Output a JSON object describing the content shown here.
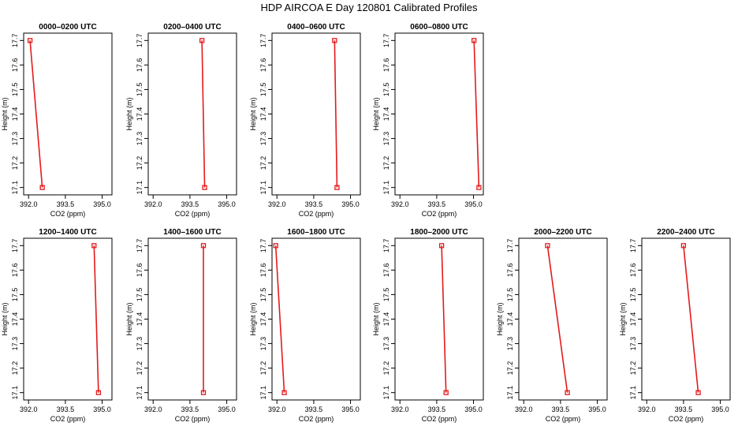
{
  "title": "HDP AIRCOA E  Day 120801  Calibrated Profiles",
  "colors": {
    "series": "#e41a1c",
    "axis": "#000000"
  },
  "chart_data": [
    {
      "type": "line",
      "title": "0000–0200 UTC",
      "xlabel": "CO2 (ppm)",
      "ylabel": "Height (m)",
      "xlim": [
        391.8,
        395.4
      ],
      "ylim": [
        17.07,
        17.73
      ],
      "xticks": [
        "392.0",
        "393.5",
        "395.0"
      ],
      "yticks": [
        "17.1",
        "17.2",
        "17.3",
        "17.4",
        "17.5",
        "17.6",
        "17.7"
      ],
      "x": [
        392.06,
        392.56
      ],
      "y": [
        17.7,
        17.1
      ]
    },
    {
      "type": "line",
      "title": "0200–0400 UTC",
      "xlabel": "CO2 (ppm)",
      "ylabel": "Height (m)",
      "xlim": [
        391.8,
        395.4
      ],
      "ylim": [
        17.07,
        17.73
      ],
      "xticks": [
        "392.0",
        "393.5",
        "395.0"
      ],
      "yticks": [
        "17.1",
        "17.2",
        "17.3",
        "17.4",
        "17.5",
        "17.6",
        "17.7"
      ],
      "x": [
        393.99,
        394.1
      ],
      "y": [
        17.7,
        17.1
      ]
    },
    {
      "type": "line",
      "title": "0400–0600 UTC",
      "xlabel": "CO2 (ppm)",
      "ylabel": "Height (m)",
      "xlim": [
        391.8,
        395.4
      ],
      "ylim": [
        17.07,
        17.73
      ],
      "xticks": [
        "392.0",
        "393.5",
        "395.0"
      ],
      "yticks": [
        "17.1",
        "17.2",
        "17.3",
        "17.4",
        "17.5",
        "17.6",
        "17.7"
      ],
      "x": [
        394.35,
        394.45
      ],
      "y": [
        17.7,
        17.1
      ]
    },
    {
      "type": "line",
      "title": "0600–0800 UTC",
      "xlabel": "CO2 (ppm)",
      "ylabel": "Height (m)",
      "xlim": [
        391.8,
        395.4
      ],
      "ylim": [
        17.07,
        17.73
      ],
      "xticks": [
        "392.0",
        "393.5",
        "395.0"
      ],
      "yticks": [
        "17.1",
        "17.2",
        "17.3",
        "17.4",
        "17.5",
        "17.6",
        "17.7"
      ],
      "x": [
        395.02,
        395.22
      ],
      "y": [
        17.7,
        17.1
      ]
    },
    {
      "type": "line",
      "title": "1200–1400 UTC",
      "xlabel": "CO2 (ppm)",
      "ylabel": "Height (m)",
      "xlim": [
        391.8,
        395.4
      ],
      "ylim": [
        17.07,
        17.73
      ],
      "xticks": [
        "392.0",
        "393.5",
        "395.0"
      ],
      "yticks": [
        "17.1",
        "17.2",
        "17.3",
        "17.4",
        "17.5",
        "17.6",
        "17.7"
      ],
      "x": [
        394.67,
        394.85
      ],
      "y": [
        17.7,
        17.1
      ]
    },
    {
      "type": "line",
      "title": "1400–1600 UTC",
      "xlabel": "CO2 (ppm)",
      "ylabel": "Height (m)",
      "xlim": [
        391.8,
        395.4
      ],
      "ylim": [
        17.07,
        17.73
      ],
      "xticks": [
        "392.0",
        "393.5",
        "395.0"
      ],
      "yticks": [
        "17.1",
        "17.2",
        "17.3",
        "17.4",
        "17.5",
        "17.6",
        "17.7"
      ],
      "x": [
        394.05,
        394.05
      ],
      "y": [
        17.7,
        17.1
      ]
    },
    {
      "type": "line",
      "title": "1600–1800 UTC",
      "xlabel": "CO2 (ppm)",
      "ylabel": "Height (m)",
      "xlim": [
        391.8,
        395.4
      ],
      "ylim": [
        17.07,
        17.73
      ],
      "xticks": [
        "392.0",
        "393.5",
        "395.0"
      ],
      "yticks": [
        "17.1",
        "17.2",
        "17.3",
        "17.4",
        "17.5",
        "17.6",
        "17.7"
      ],
      "x": [
        391.95,
        392.3
      ],
      "y": [
        17.7,
        17.1
      ]
    },
    {
      "type": "line",
      "title": "1800–2000 UTC",
      "xlabel": "CO2 (ppm)",
      "ylabel": "Height (m)",
      "xlim": [
        391.8,
        395.4
      ],
      "ylim": [
        17.07,
        17.73
      ],
      "xticks": [
        "392.0",
        "393.5",
        "395.0"
      ],
      "yticks": [
        "17.1",
        "17.2",
        "17.3",
        "17.4",
        "17.5",
        "17.6",
        "17.7"
      ],
      "x": [
        393.7,
        393.88
      ],
      "y": [
        17.7,
        17.1
      ]
    },
    {
      "type": "line",
      "title": "2000–2200 UTC",
      "xlabel": "CO2 (ppm)",
      "ylabel": "Height (m)",
      "xlim": [
        391.8,
        395.4
      ],
      "ylim": [
        17.07,
        17.73
      ],
      "xticks": [
        "392.0",
        "393.5",
        "395.0"
      ],
      "yticks": [
        "17.1",
        "17.2",
        "17.3",
        "17.4",
        "17.5",
        "17.6",
        "17.7"
      ],
      "x": [
        392.97,
        393.78
      ],
      "y": [
        17.7,
        17.1
      ]
    },
    {
      "type": "line",
      "title": "2200–2400 UTC",
      "xlabel": "CO2 (ppm)",
      "ylabel": "Height (m)",
      "xlim": [
        391.8,
        395.4
      ],
      "ylim": [
        17.07,
        17.73
      ],
      "xticks": [
        "392.0",
        "393.5",
        "395.0"
      ],
      "yticks": [
        "17.1",
        "17.2",
        "17.3",
        "17.4",
        "17.5",
        "17.6",
        "17.7"
      ],
      "x": [
        393.5,
        394.1
      ],
      "y": [
        17.7,
        17.1
      ]
    }
  ]
}
